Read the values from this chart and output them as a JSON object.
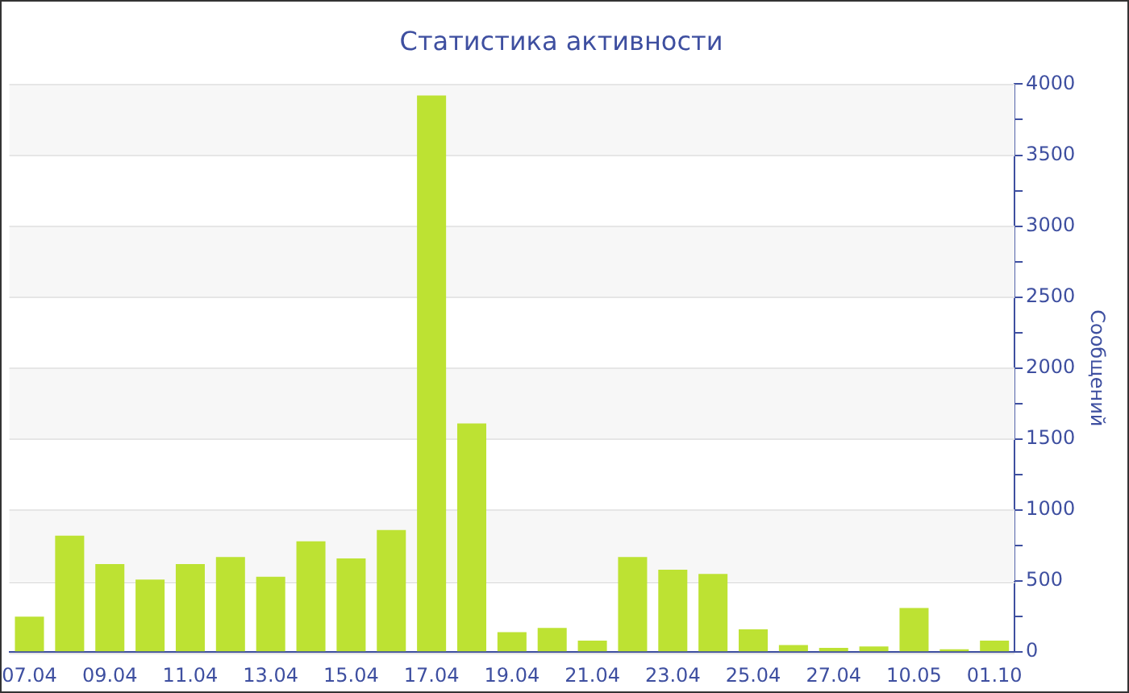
{
  "chart_data": {
    "type": "bar",
    "title": "Статистика активности",
    "ylabel": "Сообщений",
    "categories": [
      "07.04",
      null,
      "09.04",
      null,
      "11.04",
      null,
      "13.04",
      null,
      "15.04",
      null,
      "17.04",
      null,
      "19.04",
      null,
      "21.04",
      null,
      "23.04",
      null,
      "25.04",
      null,
      "27.04",
      null,
      "10.05",
      null,
      "01.10"
    ],
    "values": [
      250,
      820,
      620,
      510,
      620,
      670,
      530,
      780,
      660,
      860,
      3920,
      1610,
      140,
      170,
      80,
      670,
      580,
      550,
      160,
      50,
      30,
      40,
      310,
      20,
      80
    ],
    "color": "#bde233",
    "ylim": [
      0,
      4000
    ],
    "yticks": [
      0,
      {
        "value": 250,
        "label": null
      },
      500,
      {
        "value": 750,
        "label": null
      },
      1000,
      {
        "value": 1250,
        "label": null
      },
      1500,
      {
        "value": 1750,
        "label": null
      },
      2000,
      {
        "value": 2250,
        "label": null
      },
      2500,
      {
        "value": 2750,
        "label": null
      },
      3000,
      {
        "value": 3250,
        "label": null
      },
      3500,
      {
        "value": 3750,
        "label": null
      },
      4000
    ],
    "grid": true
  }
}
